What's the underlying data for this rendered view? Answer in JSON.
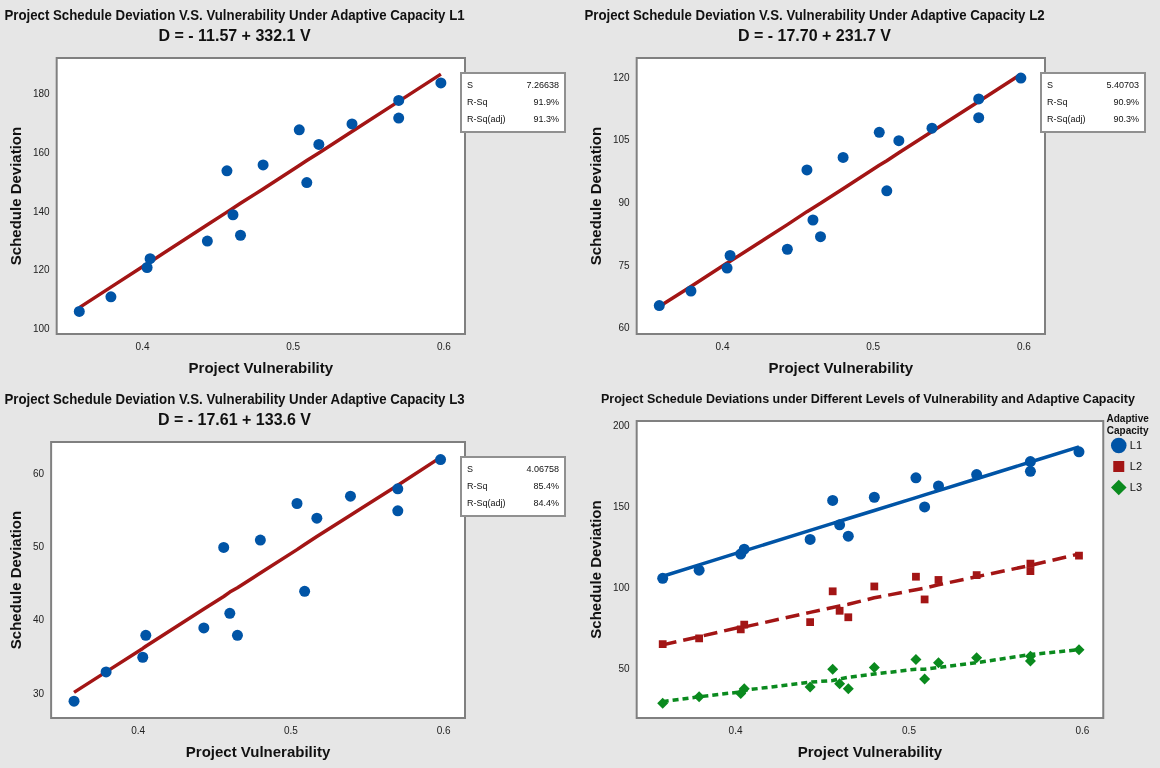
{
  "chart_data": [
    {
      "type": "scatter",
      "title": "Project Schedule Deviation V.S. Vulnerability Under Adaptive Capacity L1",
      "subtitle": "D = - 11.57 + 332.1 V",
      "xlabel": "Project Vulnerability",
      "ylabel": "Schedule Deviation",
      "x": [
        0.358,
        0.379,
        0.403,
        0.405,
        0.443,
        0.456,
        0.46,
        0.465,
        0.48,
        0.504,
        0.509,
        0.517,
        0.539,
        0.57,
        0.57,
        0.598
      ],
      "xlim": [
        0.343,
        0.614
      ],
      "xticks": [
        0.4,
        0.5,
        0.6
      ],
      "ylim": [
        98.3,
        192.5
      ],
      "yticks": [
        100,
        120,
        140,
        160,
        180
      ],
      "grid": false,
      "legend": false,
      "marker": "circle",
      "series": [
        {
          "color": "#0054a6",
          "values": [
            106,
            111,
            121,
            124,
            130,
            154,
            139,
            132,
            156,
            168,
            150,
            163,
            170,
            178,
            172,
            184
          ]
        },
        {
          "type": "line",
          "color": "#a31515",
          "line_style": "solid",
          "marker": "none",
          "values": [
            107.3,
            114.3,
            122.3,
            122.9,
            135.6,
            139.9,
            141.2,
            142.9,
            147.8,
            155.8,
            157.5,
            160.1,
            167.4,
            177.7,
            177.7,
            187.0
          ]
        }
      ],
      "annotations": [
        "S 7.26638",
        "R-Sq 91.9%",
        "R-Sq(adj) 91.3%"
      ]
    },
    {
      "type": "scatter",
      "title": "Project Schedule Deviation V.S. Vulnerability Under Adaptive Capacity L2",
      "subtitle": "D = - 17.70 + 231.7 V",
      "xlabel": "Project Vulnerability",
      "ylabel": "Schedule Deviation",
      "x": [
        0.358,
        0.379,
        0.403,
        0.405,
        0.443,
        0.456,
        0.46,
        0.465,
        0.48,
        0.504,
        0.509,
        0.517,
        0.539,
        0.57,
        0.57,
        0.598
      ],
      "xlim": [
        0.343,
        0.614
      ],
      "xticks": [
        0.4,
        0.5,
        0.6
      ],
      "ylim": [
        58.7,
        124.8
      ],
      "yticks": [
        60,
        75,
        90,
        105,
        120
      ],
      "grid": false,
      "legend": false,
      "marker": "circle",
      "series": [
        {
          "color": "#0054a6",
          "values": [
            65.5,
            69,
            74.5,
            77.5,
            79,
            98,
            86,
            82,
            101,
            107,
            93,
            105,
            108,
            115,
            110.5,
            120
          ]
        },
        {
          "type": "line",
          "color": "#a31515",
          "line_style": "solid",
          "marker": "none",
          "values": [
            65.3,
            70.1,
            75.7,
            76.1,
            84.9,
            88.0,
            88.9,
            90.0,
            93.5,
            99.1,
            100.2,
            102.1,
            107.2,
            114.4,
            114.4,
            120.9
          ]
        }
      ],
      "annotations": [
        "S 5.40703",
        "R-Sq 90.9%",
        "R-Sq(adj) 90.3%"
      ]
    },
    {
      "type": "scatter",
      "title": "Project Schedule Deviation V.S. Vulnerability Under Adaptive Capacity L3",
      "subtitle": "D = - 17.61 + 133.6 V",
      "xlabel": "Project Vulnerability",
      "ylabel": "Schedule Deviation",
      "x": [
        0.358,
        0.379,
        0.403,
        0.405,
        0.443,
        0.456,
        0.46,
        0.465,
        0.48,
        0.504,
        0.509,
        0.517,
        0.539,
        0.57,
        0.57,
        0.598
      ],
      "xlim": [
        0.343,
        0.614
      ],
      "xticks": [
        0.4,
        0.5,
        0.6
      ],
      "ylim": [
        26.7,
        64.4
      ],
      "yticks": [
        30,
        40,
        50,
        60
      ],
      "grid": false,
      "legend": false,
      "marker": "circle",
      "series": [
        {
          "color": "#0054a6",
          "values": [
            29,
            33,
            35,
            38,
            39,
            50,
            41,
            38,
            51,
            56,
            44,
            54,
            57,
            58,
            55,
            62
          ]
        },
        {
          "type": "line",
          "color": "#a31515",
          "line_style": "solid",
          "marker": "none",
          "values": [
            30.2,
            33.0,
            36.2,
            36.5,
            41.6,
            43.3,
            43.9,
            44.5,
            46.5,
            49.7,
            50.4,
            51.5,
            54.4,
            58.5,
            58.5,
            62.3
          ]
        }
      ],
      "annotations": [
        "S 4.06758",
        "R-Sq 85.4%",
        "R-Sq(adj) 84.4%"
      ]
    },
    {
      "type": "scatter",
      "title": "Project Schedule Deviations under Different Levels of Vulnerability and Adaptive Capacity",
      "xlabel": "Project Vulnerability",
      "ylabel": "Schedule Deviation",
      "x": [
        0.358,
        0.379,
        0.403,
        0.405,
        0.443,
        0.456,
        0.46,
        0.465,
        0.48,
        0.504,
        0.509,
        0.517,
        0.539,
        0.57,
        0.57,
        0.598
      ],
      "xlim": [
        0.343,
        0.612
      ],
      "xticks": [
        0.4,
        0.5,
        0.6
      ],
      "ylim": [
        19.9,
        203
      ],
      "yticks": [
        50,
        100,
        150,
        200
      ],
      "grid": false,
      "legend": "right",
      "legend_title": "Adaptive Capacity",
      "series": [
        {
          "name": "L1",
          "color": "#0054a6",
          "marker": "circle",
          "values": [
            106,
            111,
            121,
            124,
            130,
            154,
            139,
            132,
            156,
            168,
            150,
            163,
            170,
            178,
            172,
            184
          ]
        },
        {
          "name": "L2",
          "color": "#a31515",
          "marker": "square",
          "values": [
            65.5,
            69,
            74.5,
            77.5,
            79,
            98,
            86,
            82,
            101,
            107,
            93,
            105,
            108,
            115,
            110.5,
            120
          ]
        },
        {
          "name": "L3",
          "color": "#0a8a1e",
          "marker": "diamond",
          "values": [
            29,
            33,
            35,
            38,
            39,
            50,
            41,
            38,
            51,
            56,
            44,
            54,
            57,
            58,
            55,
            62
          ]
        },
        {
          "type": "line",
          "color": "#0054a6",
          "line_style": "solid",
          "marker": "none",
          "values": [
            107.3,
            114.3,
            122.3,
            122.9,
            135.6,
            139.9,
            141.2,
            142.9,
            147.8,
            155.8,
            157.5,
            160.1,
            167.4,
            177.7,
            177.7,
            187.0
          ]
        },
        {
          "type": "line",
          "color": "#a31515",
          "line_style": "dashed",
          "marker": "none",
          "values": [
            65,
            70,
            76,
            76,
            85,
            88,
            89,
            90,
            94,
            99,
            100,
            102,
            107,
            114,
            114,
            121
          ]
        },
        {
          "type": "line",
          "color": "#0a8a1e",
          "line_style": "dotted",
          "marker": "none",
          "values": [
            30,
            33,
            36,
            37,
            42,
            43,
            44,
            45,
            47,
            50,
            50,
            51,
            54,
            59,
            59,
            62
          ]
        }
      ]
    }
  ]
}
